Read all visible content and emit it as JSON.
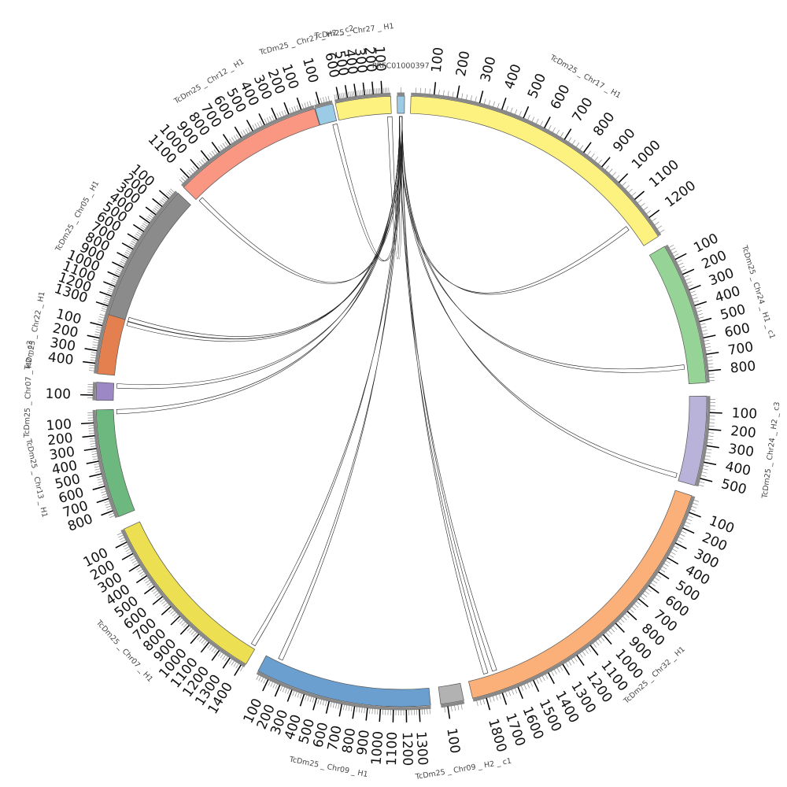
{
  "diagram": {
    "type": "circos",
    "segments": [
      {
        "id": "chr17",
        "label": "TcDm25 _ Chr17 _ H1",
        "len": 1290,
        "color": "#fdf17f",
        "ticks": [
          "100",
          "200",
          "300",
          "400",
          "500",
          "600",
          "700",
          "800",
          "900",
          "1000",
          "1100",
          "1200"
        ]
      },
      {
        "id": "chr24h1",
        "label": "TcDm25 _ Chr24 _ H1 _ c1",
        "len": 870,
        "color": "#96d396",
        "ticks": [
          "100",
          "200",
          "300",
          "400",
          "500",
          "600",
          "700",
          "800"
        ]
      },
      {
        "id": "chr24h2",
        "label": "TcDm25 _ Chr24 _ H2 _ c3",
        "len": 550,
        "color": "#b9b3d9",
        "ticks": [
          "100",
          "200",
          "300",
          "400",
          "500"
        ]
      },
      {
        "id": "chr32",
        "label": "TcDm25 _ Chr32 _ H1",
        "len": 1880,
        "color": "#fbb07a",
        "ticks": [
          "100",
          "200",
          "300",
          "400",
          "500",
          "600",
          "700",
          "800",
          "900",
          "1000",
          "1100",
          "1200",
          "1300",
          "1400",
          "1500",
          "1600",
          "1700",
          "1800"
        ]
      },
      {
        "id": "chr09h2",
        "label": "TcDm25 _ Chr09 _ H2 _ c1",
        "len": 140,
        "color": "#b2b2b2",
        "ticks": [
          "100"
        ]
      },
      {
        "id": "chr09h1",
        "label": "TcDm25 _ Chr09 _ H1",
        "len": 1390,
        "color": "#6a9fd0",
        "ticks": [
          "100",
          "200",
          "300",
          "400",
          "500",
          "600",
          "700",
          "800",
          "900",
          "1000",
          "1100",
          "1200",
          "1300"
        ],
        "reversed": true
      },
      {
        "id": "chr07h1",
        "label": "TcDm25 _ Chr07 _ H1",
        "len": 1430,
        "color": "#ece052",
        "ticks": [
          "100",
          "200",
          "300",
          "400",
          "500",
          "600",
          "700",
          "800",
          "900",
          "1000",
          "1100",
          "1200",
          "1300",
          "1400"
        ],
        "reversed": true
      },
      {
        "id": "chr13",
        "label": "TcDm25 _ Chr13 _ H1",
        "len": 860,
        "color": "#6db87e",
        "ticks": [
          "100",
          "200",
          "300",
          "400",
          "500",
          "600",
          "700",
          "800"
        ],
        "reversed": true
      },
      {
        "id": "chr07h2",
        "label": "TcDm25 _ Chr07 _ H2 _ c3",
        "len": 140,
        "color": "#9c88c4",
        "ticks": [
          "100"
        ],
        "reversed": true
      },
      {
        "id": "chr22",
        "label": "TcDm25 _ Chr22 _ H1",
        "len": 480,
        "color": "#e47f4f",
        "ticks": [
          "100",
          "200",
          "300",
          "400"
        ],
        "reversed": true
      },
      {
        "id": "chr05",
        "label": "TcDm25 _ Chr05 _ H1",
        "len": 1380,
        "color": "#8b8b8b",
        "ticks": [
          "100",
          "200",
          "300",
          "400",
          "500",
          "600",
          "700",
          "800",
          "900",
          "1000",
          "1100",
          "1200",
          "1300"
        ],
        "reversed": true
      },
      {
        "id": "chr12",
        "label": "TcDm25 _ Chr12 _ H1",
        "len": 1180,
        "color": "#f99783",
        "ticks": [
          "100",
          "200",
          "300",
          "400",
          "500",
          "600",
          "700",
          "800",
          "900",
          "1000",
          "1100"
        ],
        "reversed": true
      },
      {
        "id": "chr27h2",
        "label": "TcDm25 _ Chr27 _ H2 _ c2",
        "len": 140,
        "color": "#9ccbe6",
        "ticks": [
          "100"
        ],
        "reversed": true
      },
      {
        "id": "chr27h1",
        "label": "TcDm25 _ Chr27 _ H1",
        "len": 650,
        "color": "#fdf17f",
        "ticks": [
          "100",
          "200",
          "300",
          "400",
          "500",
          "600"
        ],
        "reversed": true
      },
      {
        "id": "prfc",
        "label": "PRFC01000397",
        "len": 40,
        "color": "#9ccbe6",
        "ticks": []
      }
    ],
    "links": [
      {
        "from": "prfc",
        "to": "chr17",
        "pos": 1180,
        "color": "#6fa8d6"
      },
      {
        "from": "prfc",
        "to": "chr24h1",
        "pos": 760,
        "color": "#f5e34a"
      },
      {
        "from": "prfc",
        "to": "chr24h2",
        "pos": 520,
        "color": "#77bf6f"
      },
      {
        "from": "prfc",
        "to": "chr32",
        "pos": 1700,
        "color": "#a89bd5"
      },
      {
        "from": "prfc",
        "to": "chr32",
        "pos": 1760,
        "color": "#e6702e"
      },
      {
        "from": "prfc",
        "to": "chr09h1",
        "pos": 120,
        "color": "#6a9fd0"
      },
      {
        "from": "prfc",
        "to": "chr07h1",
        "pos": 1400,
        "color": "#6a9fd0"
      },
      {
        "from": "prfc",
        "to": "chr13",
        "pos": 20,
        "color": "#e2d54b"
      },
      {
        "from": "prfc",
        "to": "chr07h2",
        "pos": 20,
        "color": "#77bf6f"
      },
      {
        "from": "prfc",
        "to": "chr22",
        "pos": 30,
        "color": "#a89bd5"
      },
      {
        "from": "prfc",
        "to": "chr05",
        "pos": 1370,
        "color": "#e6702e"
      },
      {
        "from": "prfc",
        "to": "chr12",
        "pos": 1150,
        "color": "#333333"
      },
      {
        "from": "prfc",
        "to": "chr27h2",
        "pos": 20,
        "color": "#e6702e"
      },
      {
        "from": "prfc",
        "to": "chr27h1",
        "pos": 20,
        "color": "#9ccbe6"
      }
    ]
  }
}
